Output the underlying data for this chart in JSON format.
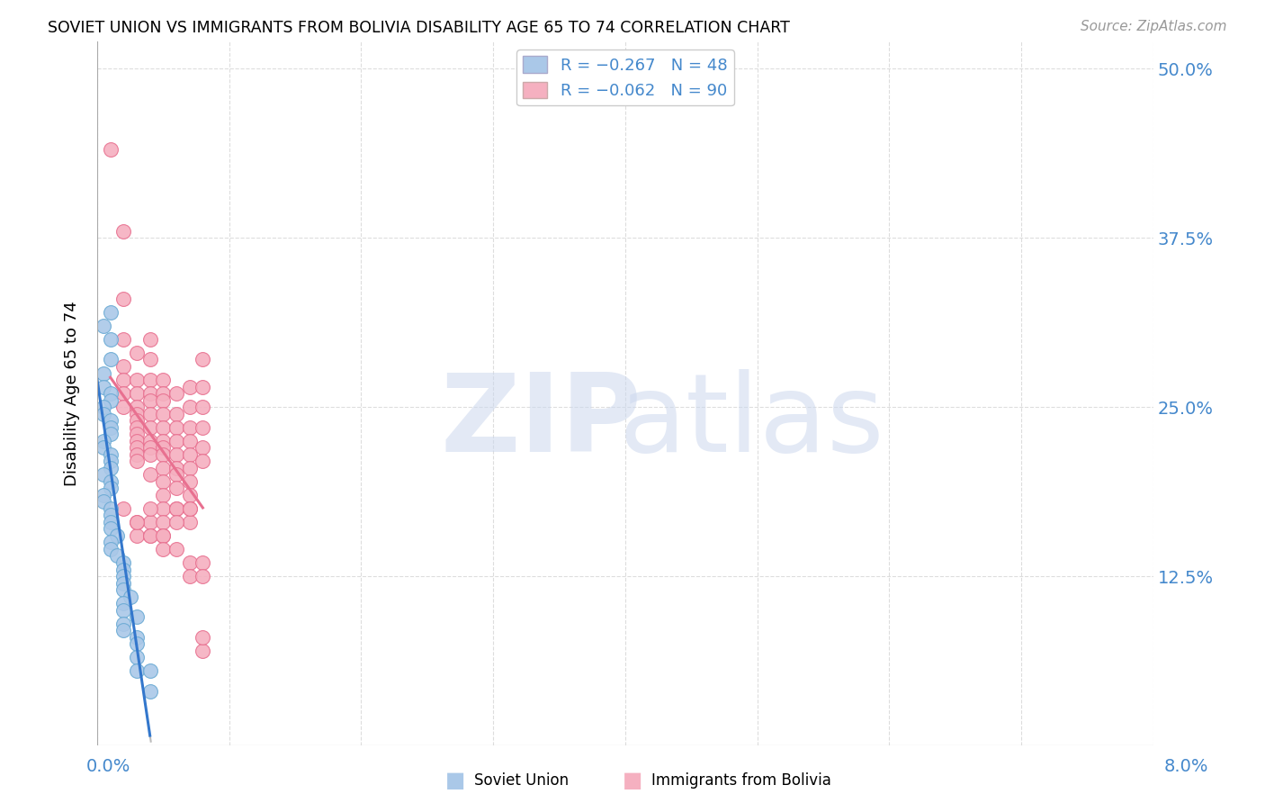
{
  "title": "SOVIET UNION VS IMMIGRANTS FROM BOLIVIA DISABILITY AGE 65 TO 74 CORRELATION CHART",
  "source": "Source: ZipAtlas.com",
  "ylabel": "Disability Age 65 to 74",
  "ytick_labels": [
    "12.5%",
    "25.0%",
    "37.5%",
    "50.0%"
  ],
  "xlim": [
    0.0,
    0.08
  ],
  "ylim": [
    0.0,
    0.52
  ],
  "legend_soviet": "R = -0.267   N = 48",
  "legend_bolivia": "R = -0.062   N = 90",
  "soviet_color": "#aac8e8",
  "soviet_edge": "#6aaad4",
  "bolivia_color": "#f5b0c0",
  "bolivia_edge": "#e87090",
  "soviet_trend_color": "#3377cc",
  "bolivia_trend_color": "#e87090",
  "grid_color": "#dddddd",
  "soviet_x": [
    0.001,
    0.0005,
    0.001,
    0.001,
    0.0005,
    0.0005,
    0.001,
    0.001,
    0.0005,
    0.0005,
    0.001,
    0.001,
    0.001,
    0.0005,
    0.0005,
    0.001,
    0.001,
    0.001,
    0.0005,
    0.001,
    0.001,
    0.0005,
    0.0005,
    0.001,
    0.001,
    0.001,
    0.001,
    0.0015,
    0.001,
    0.001,
    0.0015,
    0.002,
    0.002,
    0.002,
    0.002,
    0.002,
    0.0025,
    0.002,
    0.002,
    0.003,
    0.002,
    0.002,
    0.003,
    0.003,
    0.003,
    0.003,
    0.004,
    0.004
  ],
  "soviet_y": [
    0.32,
    0.31,
    0.3,
    0.285,
    0.275,
    0.265,
    0.26,
    0.255,
    0.25,
    0.245,
    0.24,
    0.235,
    0.23,
    0.225,
    0.22,
    0.215,
    0.21,
    0.205,
    0.2,
    0.195,
    0.19,
    0.185,
    0.18,
    0.175,
    0.17,
    0.165,
    0.16,
    0.155,
    0.15,
    0.145,
    0.14,
    0.135,
    0.13,
    0.125,
    0.12,
    0.115,
    0.11,
    0.105,
    0.1,
    0.095,
    0.09,
    0.085,
    0.08,
    0.075,
    0.065,
    0.055,
    0.055,
    0.04
  ],
  "bolivia_x": [
    0.001,
    0.002,
    0.002,
    0.002,
    0.002,
    0.002,
    0.002,
    0.002,
    0.003,
    0.003,
    0.003,
    0.003,
    0.003,
    0.003,
    0.003,
    0.003,
    0.003,
    0.003,
    0.003,
    0.003,
    0.004,
    0.004,
    0.004,
    0.004,
    0.004,
    0.004,
    0.004,
    0.004,
    0.004,
    0.004,
    0.004,
    0.005,
    0.005,
    0.005,
    0.005,
    0.005,
    0.005,
    0.005,
    0.005,
    0.005,
    0.005,
    0.005,
    0.005,
    0.006,
    0.006,
    0.006,
    0.006,
    0.006,
    0.006,
    0.006,
    0.006,
    0.006,
    0.007,
    0.007,
    0.007,
    0.007,
    0.007,
    0.007,
    0.007,
    0.007,
    0.007,
    0.007,
    0.008,
    0.008,
    0.008,
    0.008,
    0.008,
    0.008,
    0.008,
    0.003,
    0.003,
    0.004,
    0.004,
    0.005,
    0.005,
    0.006,
    0.006,
    0.007,
    0.002,
    0.003,
    0.004,
    0.004,
    0.005,
    0.005,
    0.006,
    0.007,
    0.007,
    0.008,
    0.008,
    0.008
  ],
  "bolivia_y": [
    0.44,
    0.38,
    0.33,
    0.3,
    0.28,
    0.27,
    0.26,
    0.25,
    0.29,
    0.27,
    0.26,
    0.25,
    0.245,
    0.24,
    0.235,
    0.23,
    0.225,
    0.22,
    0.215,
    0.21,
    0.3,
    0.285,
    0.27,
    0.26,
    0.255,
    0.245,
    0.235,
    0.225,
    0.22,
    0.215,
    0.2,
    0.27,
    0.26,
    0.255,
    0.245,
    0.235,
    0.225,
    0.22,
    0.215,
    0.205,
    0.195,
    0.185,
    0.175,
    0.26,
    0.245,
    0.235,
    0.225,
    0.215,
    0.205,
    0.2,
    0.19,
    0.175,
    0.265,
    0.25,
    0.235,
    0.225,
    0.215,
    0.205,
    0.195,
    0.185,
    0.175,
    0.165,
    0.285,
    0.265,
    0.25,
    0.235,
    0.22,
    0.21,
    0.07,
    0.165,
    0.155,
    0.165,
    0.155,
    0.165,
    0.155,
    0.175,
    0.165,
    0.175,
    0.175,
    0.165,
    0.175,
    0.155,
    0.155,
    0.145,
    0.145,
    0.135,
    0.125,
    0.08,
    0.135,
    0.125
  ]
}
